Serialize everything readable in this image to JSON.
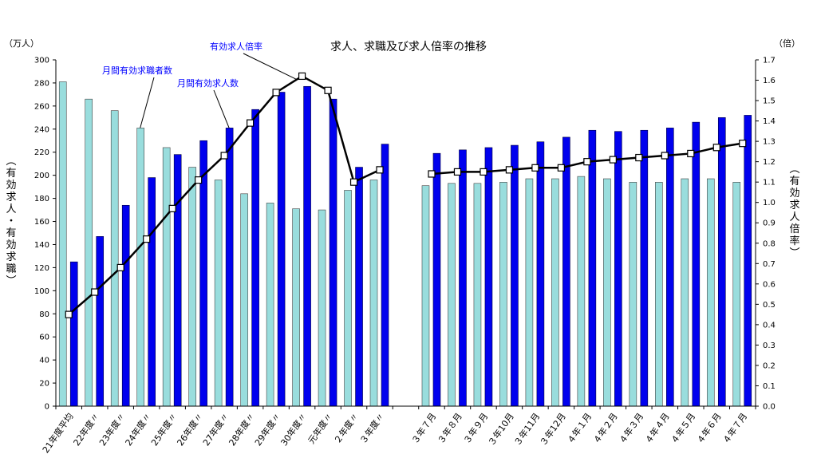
{
  "chart_data": {
    "type": "bar",
    "title": "求人、求職及び求人倍率の推移",
    "left_unit": "（万人）",
    "right_unit": "（倍）",
    "ylabel_left": "（有効求人・有効求職）",
    "ylabel_right": "（有効求人倍率）",
    "ylim_left": [
      0,
      300
    ],
    "ylim_right": [
      0,
      1.7
    ],
    "yticks_left": [
      "0",
      "20",
      "40",
      "60",
      "80",
      "100",
      "120",
      "140",
      "160",
      "180",
      "200",
      "220",
      "240",
      "260",
      "280",
      "300"
    ],
    "yticks_right": [
      "0.0",
      "0.1",
      "0.2",
      "0.3",
      "0.4",
      "0.5",
      "0.6",
      "0.7",
      "0.8",
      "0.9",
      "1.0",
      "1.1",
      "1.2",
      "1.3",
      "1.4",
      "1.5",
      "1.6",
      "1.7"
    ],
    "categories": [
      "21年度平均",
      "22年度〃",
      "23年度〃",
      "24年度〃",
      "25年度〃",
      "26年度〃",
      "27年度〃",
      "28年度〃",
      "29年度〃",
      "30年度〃",
      "元年度〃",
      "２年度〃",
      "３年度〃",
      "",
      "３年７月",
      "３年８月",
      "３年９月",
      "３年10月",
      "３年11月",
      "３年12月",
      "４年１月",
      "４年２月",
      "４年３月",
      "４年４月",
      "４年５月",
      "４年６月",
      "４年７月"
    ],
    "series": [
      {
        "name": "月間有効求職者数",
        "axis": "left",
        "color": "#99dddd",
        "values": [
          281,
          266,
          256,
          241,
          224,
          207,
          196,
          184,
          176,
          171,
          170,
          187,
          196,
          null,
          191,
          193,
          193,
          194,
          197,
          197,
          199,
          197,
          194,
          194,
          197,
          197,
          194
        ]
      },
      {
        "name": "月間有効求人数",
        "axis": "left",
        "color": "#0000ee",
        "values": [
          125,
          147,
          174,
          198,
          218,
          230,
          241,
          257,
          272,
          277,
          266,
          207,
          227,
          null,
          219,
          222,
          224,
          226,
          229,
          233,
          239,
          238,
          239,
          241,
          246,
          250,
          252
        ]
      },
      {
        "name": "有効求人倍率",
        "axis": "right",
        "type": "line",
        "color": "#000000",
        "values": [
          0.45,
          0.56,
          0.68,
          0.82,
          0.97,
          1.11,
          1.23,
          1.39,
          1.54,
          1.62,
          1.55,
          1.1,
          1.16,
          null,
          1.14,
          1.15,
          1.15,
          1.16,
          1.17,
          1.17,
          1.2,
          1.21,
          1.22,
          1.23,
          1.24,
          1.27,
          1.29
        ]
      }
    ],
    "annotations": [
      "有効求人倍率",
      "月間有効求職者数",
      "月間有効求人数"
    ],
    "grid": false
  }
}
